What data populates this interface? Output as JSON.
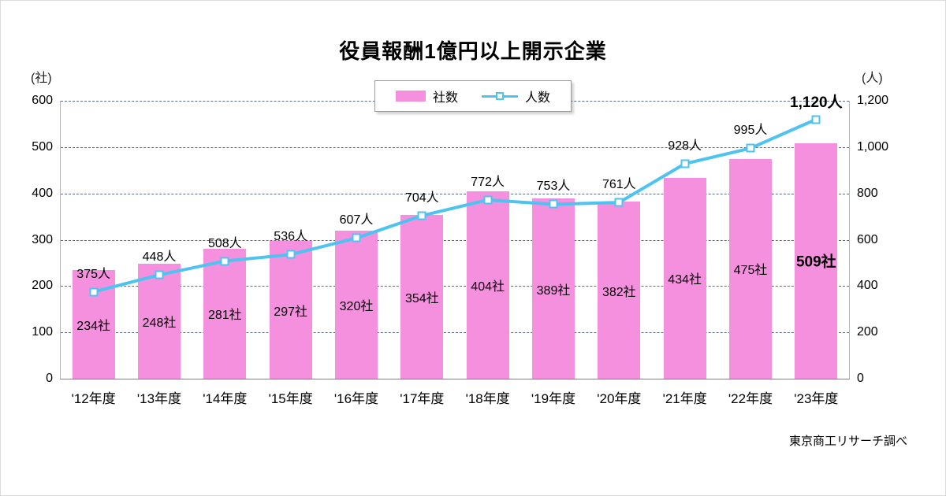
{
  "chart_data": {
    "type": "combo",
    "title": "役員報酬1億円以上開示企業",
    "source": "東京商工リサーチ調べ",
    "legend_position": "top-center",
    "grid": "dashed-horizontal",
    "categories": [
      "'12年度",
      "'13年度",
      "'14年度",
      "'15年度",
      "'16年度",
      "'17年度",
      "'18年度",
      "'19年度",
      "'20年度",
      "'21年度",
      "'22年度",
      "'23年度"
    ],
    "left_axis": {
      "unit": "(社)",
      "min": 0,
      "max": 600,
      "step": 100,
      "ticks": [
        "0",
        "100",
        "200",
        "300",
        "400",
        "500",
        "600"
      ]
    },
    "right_axis": {
      "unit": "(人)",
      "min": 0,
      "max": 1200,
      "step": 200,
      "ticks": [
        "0",
        "200",
        "400",
        "600",
        "800",
        "1,000",
        "1,200"
      ]
    },
    "series": [
      {
        "name": "社数",
        "type": "bar",
        "axis": "left",
        "color": "#F590DE",
        "values": [
          234,
          248,
          281,
          297,
          320,
          354,
          404,
          389,
          382,
          434,
          475,
          509
        ],
        "labels": [
          "234社",
          "248社",
          "281社",
          "297社",
          "320社",
          "354社",
          "404社",
          "389社",
          "382社",
          "434社",
          "475社",
          "509社"
        ]
      },
      {
        "name": "人数",
        "type": "line",
        "axis": "right",
        "color": "#4EC3F0",
        "marker": "square-white",
        "values": [
          375,
          448,
          508,
          536,
          607,
          704,
          772,
          753,
          761,
          928,
          995,
          1120
        ],
        "labels": [
          "375人",
          "448人",
          "508人",
          "536人",
          "607人",
          "704人",
          "772人",
          "753人",
          "761人",
          "928人",
          "995人",
          "1,120人"
        ]
      }
    ]
  }
}
